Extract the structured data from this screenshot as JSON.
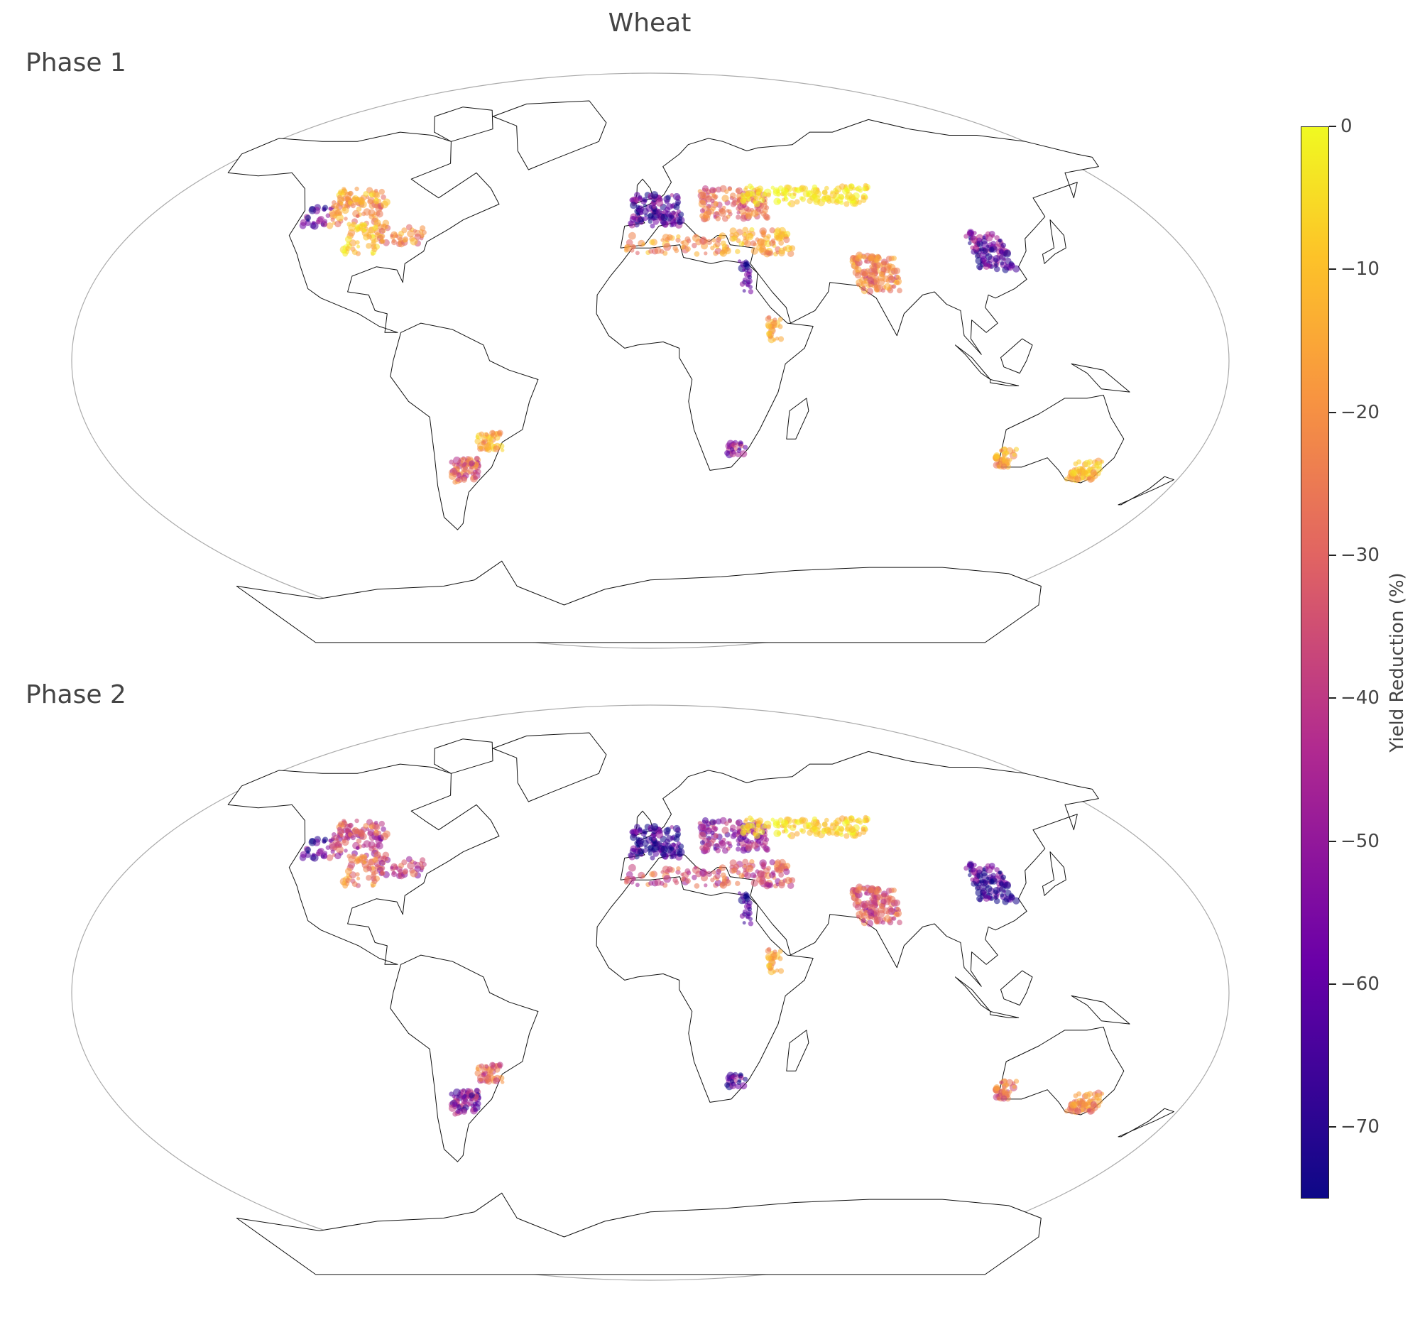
{
  "title": "Wheat",
  "panels": [
    {
      "label": "Phase 1"
    },
    {
      "label": "Phase 2"
    }
  ],
  "colorbar": {
    "label": "Yield Reduction (%)",
    "min": -75,
    "max": 0,
    "ticks": [
      0,
      -10,
      -20,
      -30,
      -40,
      -50,
      -60,
      -70
    ],
    "tick_labels": [
      "0",
      "−10",
      "−20",
      "−30",
      "−40",
      "−50",
      "−60",
      "−70"
    ],
    "colormap": "plasma",
    "colors": [
      "#0d0887",
      "#6a00a8",
      "#b12a90",
      "#e16462",
      "#f89540",
      "#fdc328",
      "#f0f921"
    ]
  },
  "map_colors": {
    "coastline": "#111111",
    "borders": "#999999",
    "frame": "#aaaaaa"
  },
  "regions": {
    "phase_1": [
      {
        "name": "US Great Plains north",
        "value": -25
      },
      {
        "name": "US Great Plains central",
        "value": -12
      },
      {
        "name": "US Pacific Northwest",
        "value": -65
      },
      {
        "name": "US Midwest east",
        "value": -28
      },
      {
        "name": "Canada prairies",
        "value": -20
      },
      {
        "name": "Western Europe",
        "value": -65
      },
      {
        "name": "Eastern Europe",
        "value": -35
      },
      {
        "name": "Russia / Kazakhstan steppe",
        "value": -3
      },
      {
        "name": "Mediterranean",
        "value": -25
      },
      {
        "name": "Turkey / Middle East",
        "value": -20
      },
      {
        "name": "Nile",
        "value": -70
      },
      {
        "name": "Ethiopia",
        "value": -22
      },
      {
        "name": "India / Pakistan",
        "value": -30
      },
      {
        "name": "North China Plain",
        "value": -62
      },
      {
        "name": "Argentina Pampas",
        "value": -38
      },
      {
        "name": "Southern Brazil",
        "value": -18
      },
      {
        "name": "South Africa",
        "value": -55
      },
      {
        "name": "Western Australia",
        "value": -20
      },
      {
        "name": "Eastern Australia",
        "value": -18
      }
    ],
    "phase_2": [
      {
        "name": "US Great Plains north",
        "value": -45
      },
      {
        "name": "US Great Plains central",
        "value": -30
      },
      {
        "name": "US Pacific Northwest",
        "value": -68
      },
      {
        "name": "US Midwest east",
        "value": -45
      },
      {
        "name": "Canada prairies",
        "value": -40
      },
      {
        "name": "Western Europe",
        "value": -70
      },
      {
        "name": "Eastern Europe",
        "value": -55
      },
      {
        "name": "Russia / Kazakhstan steppe",
        "value": -8
      },
      {
        "name": "Mediterranean",
        "value": -40
      },
      {
        "name": "Turkey / Middle East",
        "value": -40
      },
      {
        "name": "Nile",
        "value": -72
      },
      {
        "name": "Ethiopia",
        "value": -22
      },
      {
        "name": "India / Pakistan",
        "value": -40
      },
      {
        "name": "North China Plain",
        "value": -68
      },
      {
        "name": "Argentina Pampas",
        "value": -58
      },
      {
        "name": "Southern Brazil",
        "value": -35
      },
      {
        "name": "South Africa",
        "value": -65
      },
      {
        "name": "Western Australia",
        "value": -32
      },
      {
        "name": "Eastern Australia",
        "value": -30
      }
    ]
  }
}
